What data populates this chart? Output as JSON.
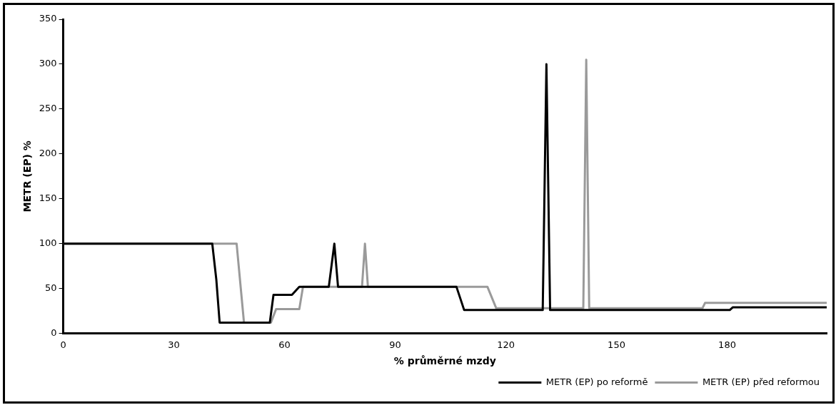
{
  "chart_data": {
    "type": "line",
    "xlabel": "% průměrné mzdy",
    "ylabel": "METR (EP) %",
    "xlim": [
      0,
      207
    ],
    "xticks": [
      0,
      30,
      60,
      90,
      120,
      150,
      180
    ],
    "ylim": [
      0,
      350
    ],
    "yticks": [
      0,
      50,
      100,
      150,
      200,
      250,
      300,
      350
    ],
    "grid": false,
    "legend": "bottom right",
    "marker": "none",
    "line_style": "solid",
    "series": [
      {
        "name": "METR (EP) po reformě",
        "color": "#000000",
        "x": [
          0,
          40.4,
          41.5,
          42.4,
          48.4,
          56,
          57,
          62,
          64,
          72,
          73.5,
          74.5,
          106.6,
          108.7,
          130,
          131,
          132,
          180.7,
          181.5,
          207
        ],
        "values": [
          100,
          100,
          60,
          12,
          12,
          12,
          43,
          43,
          52,
          52,
          100,
          52,
          52,
          26,
          26,
          300,
          26,
          26,
          29,
          29
        ]
      },
      {
        "name": "METR (EP) před reformou",
        "color": "#9a9a9a",
        "x": [
          0,
          47,
          49,
          56.3,
          57.7,
          64,
          65,
          81,
          81.8,
          82.6,
          115,
          117.4,
          141,
          141.8,
          142.6,
          173.3,
          174,
          207
        ],
        "values": [
          100,
          100,
          12,
          12,
          27,
          27,
          52,
          52,
          100,
          52,
          52,
          28,
          28,
          305,
          28,
          28,
          34,
          34
        ]
      }
    ]
  }
}
